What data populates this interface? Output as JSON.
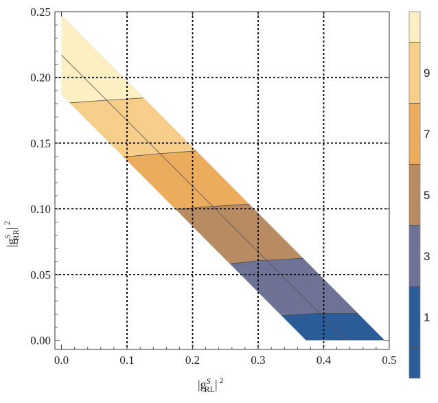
{
  "chart_data": {
    "type": "contour",
    "xlabel": {
      "pre": "|g",
      "sup": "S",
      "sub": "RL",
      "post": "|",
      "power": "2"
    },
    "ylabel": {
      "pre": "|g",
      "sup": "S",
      "sub": "RR",
      "post": "|",
      "power": "2"
    },
    "xlim": [
      -0.01,
      0.5
    ],
    "ylim": [
      -0.007,
      0.25
    ],
    "x_ticks": [
      0.0,
      0.1,
      0.2,
      0.3,
      0.4,
      0.5
    ],
    "x_tick_labels": [
      "0.0",
      "0.1",
      "0.2",
      "0.3",
      "0.4",
      "0.5"
    ],
    "y_ticks": [
      0.0,
      0.05,
      0.1,
      0.15,
      0.2,
      0.25
    ],
    "y_tick_labels": [
      "0.00",
      "0.05",
      "0.10",
      "0.15",
      "0.20",
      "0.25"
    ],
    "grid_x": [
      0.1,
      0.2,
      0.3,
      0.4
    ],
    "grid_y": [
      0.05,
      0.1,
      0.15,
      0.2
    ],
    "grid_style": "dotted",
    "region": {
      "lower_edge": [
        [
          0.373,
          0.0
        ],
        [
          0.0,
          0.187
        ]
      ],
      "upper_edge": [
        [
          0.493,
          0.0
        ],
        [
          0.0,
          0.247
        ]
      ]
    },
    "central_line": [
      [
        0.0,
        0.217
      ],
      [
        0.435,
        0.0
      ]
    ],
    "contour_levels": [
      {
        "level": 1,
        "color": "#2c5c97",
        "boundary": [
          [
            0.345,
            0.019
          ],
          [
            0.39,
            0.0205
          ],
          [
            0.445,
            0.0205
          ]
        ]
      },
      {
        "level": 3,
        "color": "#6e7396",
        "boundary": [
          [
            0.255,
            0.058
          ],
          [
            0.3,
            0.0605
          ],
          [
            0.375,
            0.0625
          ]
        ]
      },
      {
        "level": 5,
        "color": "#b88b62",
        "boundary": [
          [
            0.175,
            0.0995
          ],
          [
            0.22,
            0.1015
          ],
          [
            0.285,
            0.1035
          ]
        ]
      },
      {
        "level": 7,
        "color": "#ecac5d",
        "boundary": [
          [
            0.095,
            0.1395
          ],
          [
            0.15,
            0.142
          ],
          [
            0.205,
            0.144
          ]
        ]
      },
      {
        "level": 9,
        "color": "#f7ce8a",
        "boundary": [
          [
            0.01,
            0.1805
          ],
          [
            0.065,
            0.1825
          ],
          [
            0.13,
            0.1845
          ]
        ]
      },
      {
        "level": 11,
        "color": "#fcf0c3",
        "boundary": []
      }
    ],
    "colorbar": {
      "range": [
        -1,
        11
      ],
      "ticks": [
        1,
        3,
        5,
        7,
        9
      ],
      "tick_labels": [
        "1",
        "3",
        "5",
        "7",
        "9"
      ],
      "bands": [
        {
          "from": -1,
          "to": 0,
          "color": "#2c5c97"
        },
        {
          "from": 0,
          "to": 2,
          "color": "#2c5c97"
        },
        {
          "from": 2,
          "to": 4,
          "color": "#6e7396"
        },
        {
          "from": 4,
          "to": 6,
          "color": "#b88b62"
        },
        {
          "from": 6,
          "to": 8,
          "color": "#ecac5d"
        },
        {
          "from": 8,
          "to": 10,
          "color": "#f7ce8a"
        },
        {
          "from": 10,
          "to": 11,
          "color": "#fcf0c3"
        }
      ]
    }
  }
}
